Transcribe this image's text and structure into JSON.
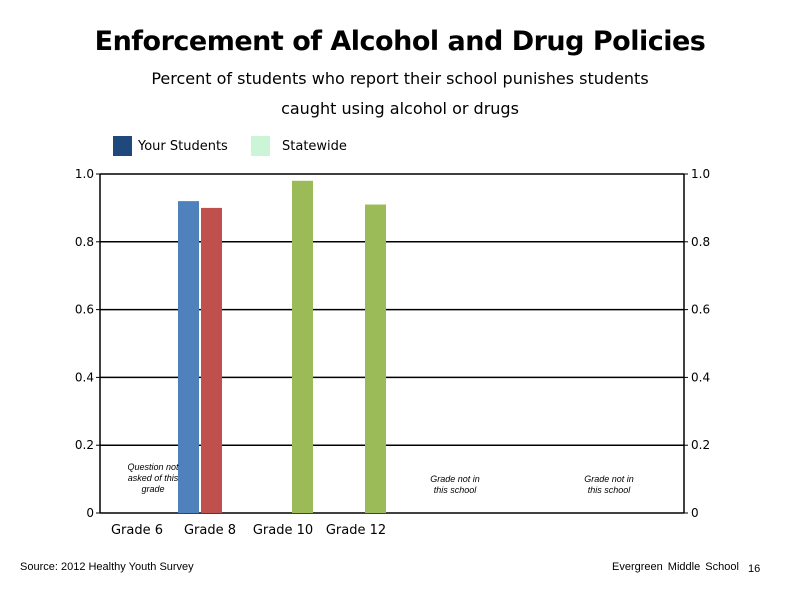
{
  "title": "Enforcement of Alcohol and Drug Policies",
  "subtitle_line1": "Percent of students who report their school punishes students",
  "subtitle_line2": "caught using alcohol or drugs",
  "footer": {
    "source": "Source: 2012 Healthy Youth Survey",
    "school": "Evergreen Middle School",
    "page_number": "16"
  },
  "colors": {
    "your_students_swatch": "#1f497d",
    "statewide_swatch": "#ccf5d8",
    "bar_blue": "#4f81bd",
    "bar_red": "#c0504d",
    "bar_green": "#9bbb59"
  },
  "chart_data": {
    "type": "bar",
    "title": "Enforcement of Alcohol and Drug Policies",
    "categories": [
      "Grade 6",
      "Grade 8",
      "Grade 10",
      "Grade 12"
    ],
    "legend": [
      "Your Students",
      "Statewide"
    ],
    "legend_position": "top-left",
    "ylim": [
      0,
      1.0
    ],
    "y_ticks": [
      "0",
      "0.2",
      "0.4",
      "0.6",
      "0.8",
      "1.0"
    ],
    "grid": true,
    "secondary_axis": true,
    "bars": [
      {
        "category": "Grade 8",
        "color": "#4f81bd",
        "value": 0.92
      },
      {
        "category": "Grade 8",
        "color": "#c0504d",
        "value": 0.9
      },
      {
        "category": "Grade 10",
        "color": "#9bbb59",
        "value": 0.98
      },
      {
        "category": "Grade 12",
        "color": "#9bbb59",
        "value": 0.91
      }
    ],
    "annotations": [
      {
        "lines": [
          "Question not",
          "asked of this",
          "grade"
        ]
      },
      {
        "lines": [
          "Grade not in",
          "this school"
        ]
      },
      {
        "lines": [
          "Grade not in",
          "this school"
        ]
      }
    ]
  }
}
